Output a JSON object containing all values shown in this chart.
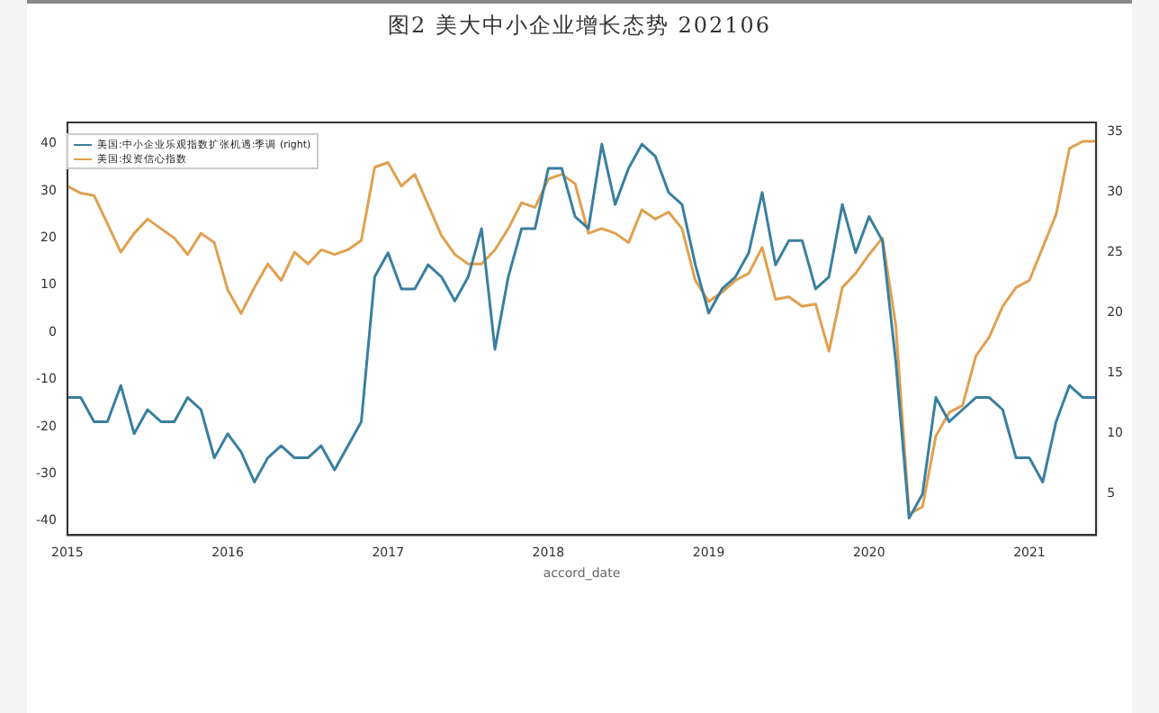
{
  "chart_data": {
    "type": "line",
    "title": "图2 美大中小企业增长态势 202106",
    "xlabel": "accord_date",
    "x": [
      "2015-01",
      "2015-02",
      "2015-03",
      "2015-04",
      "2015-05",
      "2015-06",
      "2015-07",
      "2015-08",
      "2015-09",
      "2015-10",
      "2015-11",
      "2015-12",
      "2016-01",
      "2016-02",
      "2016-03",
      "2016-04",
      "2016-05",
      "2016-06",
      "2016-07",
      "2016-08",
      "2016-09",
      "2016-10",
      "2016-11",
      "2016-12",
      "2017-01",
      "2017-02",
      "2017-03",
      "2017-04",
      "2017-05",
      "2017-06",
      "2017-07",
      "2017-08",
      "2017-09",
      "2017-10",
      "2017-11",
      "2017-12",
      "2018-01",
      "2018-02",
      "2018-03",
      "2018-04",
      "2018-05",
      "2018-06",
      "2018-07",
      "2018-08",
      "2018-09",
      "2018-10",
      "2018-11",
      "2018-12",
      "2019-01",
      "2019-02",
      "2019-03",
      "2019-04",
      "2019-05",
      "2019-06",
      "2019-07",
      "2019-08",
      "2019-09",
      "2019-10",
      "2019-11",
      "2019-12",
      "2020-01",
      "2020-02",
      "2020-03",
      "2020-04",
      "2020-05",
      "2020-06",
      "2020-07",
      "2020-08",
      "2020-09",
      "2020-10",
      "2020-11",
      "2020-12",
      "2021-01",
      "2021-02",
      "2021-03",
      "2021-04",
      "2021-05",
      "2021-06"
    ],
    "series": [
      {
        "name": "美国:中小企业乐观指数扩张机遇:季调 (right)",
        "color": "#3a7fa0",
        "axis": "y2",
        "values": [
          13,
          13,
          11,
          11,
          14,
          10,
          12,
          11,
          11,
          13,
          12,
          8,
          10,
          8.5,
          6,
          8,
          9,
          8,
          8,
          9,
          7,
          9,
          11,
          23,
          25,
          22,
          22,
          24,
          23,
          21,
          23,
          27,
          17,
          23,
          27,
          27,
          32,
          32,
          28,
          27,
          34,
          29,
          32,
          34,
          33,
          30,
          29,
          24,
          20,
          22,
          23,
          25,
          30,
          24,
          26,
          26,
          22,
          23,
          29,
          25,
          28,
          26,
          16,
          3,
          5,
          13,
          11,
          12,
          13,
          13,
          12,
          8,
          8,
          6,
          11,
          14,
          13,
          13
        ]
      },
      {
        "name": "美国:投资信心指数",
        "color": "#e0a050",
        "values": [
          31,
          29.5,
          29,
          23,
          17,
          21,
          24,
          22,
          20,
          16.5,
          21,
          19,
          9,
          4,
          9.5,
          14.5,
          11,
          17,
          14.5,
          17.5,
          16.5,
          17.5,
          19.5,
          35,
          36,
          31,
          33.5,
          27,
          20.5,
          16.5,
          14.5,
          14.5,
          17.5,
          22,
          27.5,
          26.5,
          32.5,
          33.5,
          31.5,
          21,
          22,
          21,
          19,
          26,
          24,
          25.5,
          22,
          11,
          6.5,
          8.5,
          11,
          12.5,
          18,
          7,
          7.5,
          5.5,
          6,
          -4,
          9.5,
          12.5,
          16.5,
          20,
          1.5,
          -38.5,
          -37,
          -22,
          -17,
          -15.5,
          -5,
          -1,
          5.5,
          9.5,
          11,
          18,
          25,
          39,
          40.5,
          40.5
        ]
      }
    ],
    "xlim": [
      "2015-01",
      "2021-06"
    ],
    "xticks": [
      {
        "value": "2015",
        "label": "2015"
      },
      {
        "value": "2016",
        "label": "2016"
      },
      {
        "value": "2017",
        "label": "2017"
      },
      {
        "value": "2018",
        "label": "2018"
      },
      {
        "value": "2019",
        "label": "2019"
      },
      {
        "value": "2020",
        "label": "2020"
      },
      {
        "value": "2021",
        "label": "2021"
      }
    ],
    "ylim": [
      -43,
      44.5
    ],
    "yticks": [
      -40,
      -30,
      -20,
      -10,
      0,
      10,
      20,
      30,
      40
    ],
    "y2lim": [
      1.6,
      35.8
    ],
    "y2ticks": [
      5,
      10,
      15,
      20,
      25,
      30,
      35
    ],
    "legend": "top left",
    "grid": false,
    "marker": "none",
    "line_style": "solid"
  }
}
